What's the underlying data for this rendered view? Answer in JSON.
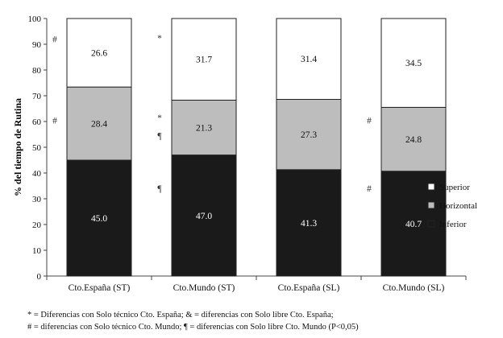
{
  "chart_data": {
    "type": "bar",
    "stacked": true,
    "categories": [
      "Cto.España (ST)",
      "Cto.Mundo (ST)",
      "Cto.España (SL)",
      "Cto.Mundo (SL)"
    ],
    "series": [
      {
        "name": "Inferior",
        "values": [
          45.0,
          47.0,
          41.3,
          40.7
        ],
        "labels": [
          "45.0",
          "47.0",
          "41.3",
          "40.7"
        ],
        "color": "#1a1a1a",
        "label_color": "#ffffff"
      },
      {
        "name": "Horizontal",
        "values": [
          28.4,
          21.3,
          27.3,
          24.8
        ],
        "labels": [
          "28.4",
          "21.3",
          "27.3",
          "24.8"
        ],
        "color": "#bdbdbd",
        "label_color": "#111111"
      },
      {
        "name": "Superior",
        "values": [
          26.6,
          31.7,
          31.4,
          34.5
        ],
        "labels": [
          "26.6",
          "31.7",
          "31.4",
          "34.5"
        ],
        "color": "#ffffff",
        "label_color": "#111111"
      }
    ],
    "ylabel": "% del tiempo de Rutina",
    "xlabel": "",
    "ylim": [
      0,
      100
    ],
    "yticks": [
      "0",
      "10",
      "20",
      "30",
      "40",
      "50",
      "60",
      "70",
      "80",
      "90",
      "100"
    ],
    "legend": {
      "position": "right",
      "order": [
        "Superior",
        "Horizontal",
        "Inferior"
      ]
    },
    "annotations": [
      {
        "text": "#",
        "category": 0,
        "y": 92
      },
      {
        "text": "#",
        "category": 0,
        "y": 60.5
      },
      {
        "text": "*",
        "category": 1,
        "y": 92.5
      },
      {
        "text": "*",
        "category": 1,
        "y": 61.5
      },
      {
        "text": "¶",
        "category": 1,
        "y": 54.5
      },
      {
        "text": "¶",
        "category": 1,
        "y": 34
      },
      {
        "text": "#",
        "category": 3,
        "y": 60.5
      },
      {
        "text": "#",
        "category": 3,
        "y": 34
      }
    ]
  },
  "footnotes": {
    "line1": "* = Diferencias con Solo técnico Cto. España; & = diferencias con Solo libre Cto. España;",
    "line2": "# = diferencias con Solo técnico Cto. Mundo; ¶ = diferencias con Solo libre Cto. Mundo   (P<0,05)"
  }
}
